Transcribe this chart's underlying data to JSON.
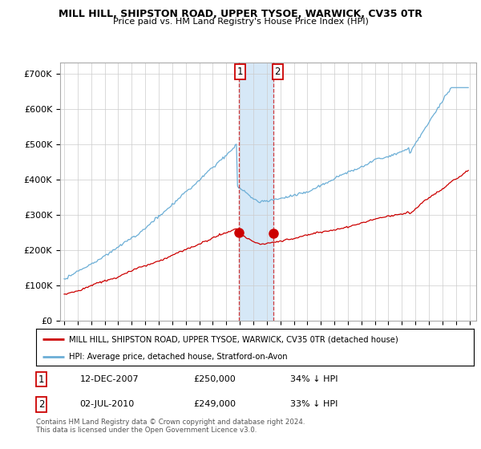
{
  "title": "MILL HILL, SHIPSTON ROAD, UPPER TYSOE, WARWICK, CV35 0TR",
  "subtitle": "Price paid vs. HM Land Registry's House Price Index (HPI)",
  "legend_line1": "MILL HILL, SHIPSTON ROAD, UPPER TYSOE, WARWICK, CV35 0TR (detached house)",
  "legend_line2": "HPI: Average price, detached house, Stratford-on-Avon",
  "footnote": "Contains HM Land Registry data © Crown copyright and database right 2024.\nThis data is licensed under the Open Government Licence v3.0.",
  "sale1_date": "12-DEC-2007",
  "sale1_price": "£250,000",
  "sale1_hpi": "34% ↓ HPI",
  "sale2_date": "02-JUL-2010",
  "sale2_price": "£249,000",
  "sale2_hpi": "33% ↓ HPI",
  "hpi_color": "#6baed6",
  "price_color": "#cc0000",
  "highlight_color": "#d6e8f7",
  "ylim": [
    0,
    730000
  ],
  "yticks": [
    0,
    100000,
    200000,
    300000,
    400000,
    500000,
    600000,
    700000
  ],
  "ytick_labels": [
    "£0",
    "£100K",
    "£200K",
    "£300K",
    "£400K",
    "£500K",
    "£600K",
    "£700K"
  ],
  "sale1_x": 2007.958,
  "sale2_x": 2010.5,
  "sale1_y": 250000,
  "sale2_y": 249000,
  "xmin": 1994.7,
  "xmax": 2025.5
}
